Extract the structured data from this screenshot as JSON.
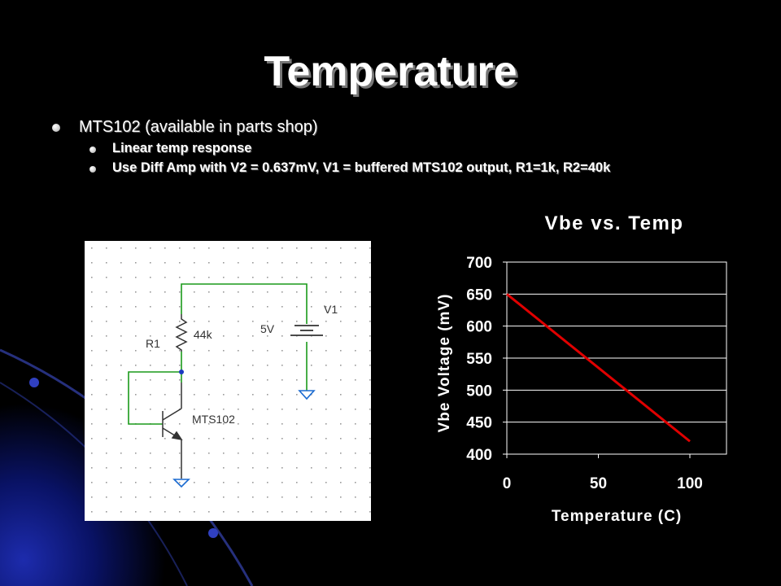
{
  "header": {
    "title": "Temperature"
  },
  "bullets": [
    {
      "text": "MTS102 (available in parts shop)",
      "children": [
        "Linear temp response",
        "Use Diff Amp with V2 = 0.637mV, V1 = buffered MTS102 output, R1=1k, R2=40k"
      ]
    }
  ],
  "circuit": {
    "labels": [
      "R1",
      "44k",
      "5V",
      "V1",
      "MTS102"
    ]
  },
  "chart_data": {
    "type": "line",
    "title": "Vbe vs. Temp",
    "x_label": "Temperature (C)",
    "y_label": "Vbe Voltage (mV)",
    "x": [
      0,
      100
    ],
    "values": [
      650,
      420
    ],
    "color": "#e00000",
    "xlim": [
      0,
      120
    ],
    "xticks": [
      0,
      50,
      100
    ],
    "ylim": [
      400,
      700
    ],
    "yticks": [
      400,
      450,
      500,
      550,
      600,
      650,
      700
    ],
    "grid": true
  }
}
